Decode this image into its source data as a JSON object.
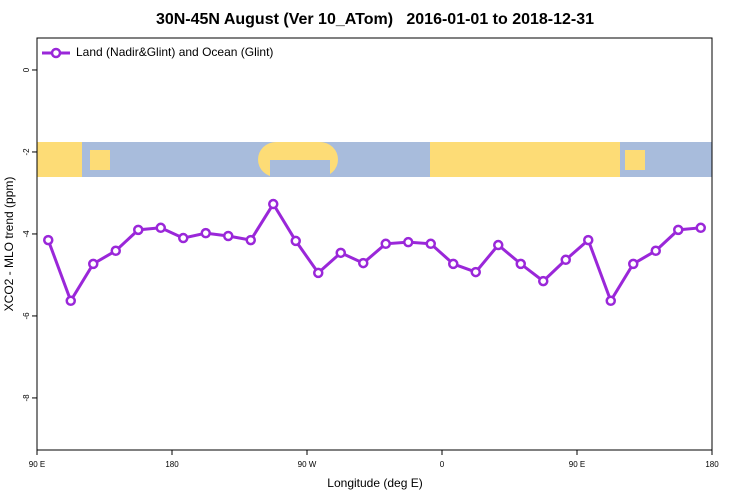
{
  "chart_data": {
    "type": "line",
    "title": "30N-45N August (Ver 10_ATom)   2016-01-01 to 2018-12-31",
    "x_label": "Longitude (deg E)",
    "y_label": "XCO2 - MLO trend (ppm)",
    "x": [
      97.5,
      112.5,
      127.5,
      142.5,
      157.5,
      172.5,
      187.5,
      202.5,
      217.5,
      232.5,
      247.5,
      262.5,
      277.5,
      292.5,
      307.5,
      322.5,
      337.5,
      352.5,
      367.5,
      382.5,
      397.5,
      412.5,
      427.5,
      442.5,
      457.5,
      472.5,
      487.5,
      502.5,
      517.5,
      532.5
    ],
    "series": [
      {
        "name": "Land (Nadir&Glint) and Ocean (Glint)",
        "color": "#9a27d9",
        "values": [
          -4.15,
          -5.63,
          -4.73,
          -4.41,
          -3.9,
          -3.85,
          -4.1,
          -3.98,
          -4.05,
          -4.15,
          -3.27,
          -4.17,
          -4.95,
          -4.46,
          -4.71,
          -4.24,
          -4.2,
          -4.24,
          -4.73,
          -4.93,
          -4.27,
          -4.73,
          -5.15,
          -4.63,
          -4.15,
          -5.63,
          -4.73,
          -4.41,
          -3.9,
          -3.85
        ]
      }
    ],
    "xlim": [
      90,
      540
    ],
    "xticks": [
      {
        "value": 90,
        "label": "90 E"
      },
      {
        "value": 180,
        "label": "180"
      },
      {
        "value": 270,
        "label": "90 W"
      },
      {
        "value": 360,
        "label": "0"
      },
      {
        "value": 450,
        "label": "90 E"
      },
      {
        "value": 540,
        "label": "180"
      }
    ],
    "ylim": [
      -9.27,
      0.78
    ],
    "yticks": [
      0,
      -2,
      -4,
      -6,
      -8
    ],
    "legend": "top-left"
  }
}
